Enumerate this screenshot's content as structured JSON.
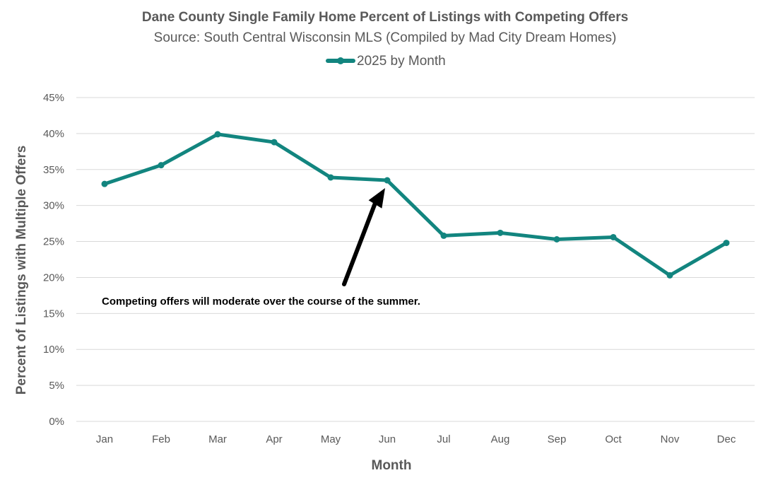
{
  "chart_data": {
    "type": "line",
    "title": "Dane County Single Family Home Percent of Listings with Competing Offers",
    "subtitle": "Source: South Central Wisconsin MLS (Compiled by Mad City Dream Homes)",
    "xlabel": "Month",
    "ylabel": "Percent of Listings with Multiple Offers",
    "categories": [
      "Jan",
      "Feb",
      "Mar",
      "Apr",
      "May",
      "Jun",
      "Jul",
      "Aug",
      "Sep",
      "Oct",
      "Nov",
      "Dec"
    ],
    "series": [
      {
        "name": "2025 by Month",
        "color": "#12857f",
        "values": [
          33.0,
          35.6,
          39.9,
          38.8,
          33.9,
          33.5,
          25.8,
          26.2,
          25.3,
          25.6,
          20.3,
          24.8
        ]
      }
    ],
    "ylim": [
      0,
      45
    ],
    "yticks": [
      0,
      5,
      10,
      15,
      20,
      25,
      30,
      35,
      40,
      45
    ],
    "ytick_labels": [
      "0%",
      "5%",
      "10%",
      "15%",
      "20%",
      "25%",
      "30%",
      "35%",
      "40%",
      "45%"
    ],
    "grid": true,
    "legend_position": "top-center",
    "annotation": {
      "text": "Competing offers will moderate over the course of the summer.",
      "points_to": "Jun"
    }
  }
}
